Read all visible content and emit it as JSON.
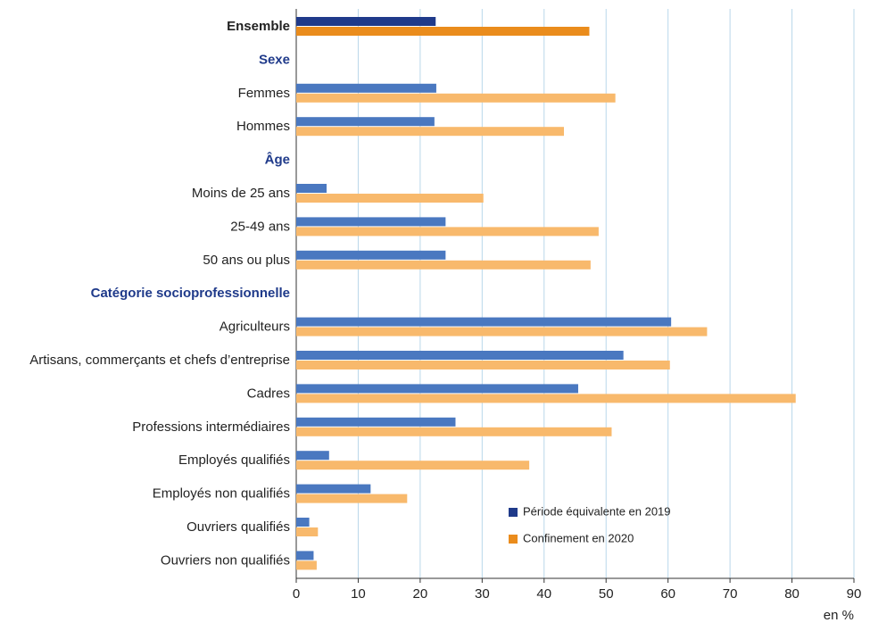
{
  "chart_data": {
    "type": "hbar",
    "categories": [
      "Ensemble",
      "Sexe",
      "Femmes",
      "Hommes",
      "Âge",
      "Moins de 25 ans",
      "25-49 ans",
      "50 ans ou plus",
      "Catégorie socioprofessionnelle",
      "Agriculteurs",
      "Artisans, commerçants et chefs d’entreprise",
      "Cadres",
      "Professions intermédiaires",
      "Employés qualifiés",
      "Employés non qualifiés",
      "Ouvriers qualifiés",
      "Ouvriers non qualifiés"
    ],
    "category_styles": [
      "total",
      "header",
      "item",
      "item",
      "header",
      "item",
      "item",
      "item",
      "header",
      "item",
      "item",
      "item",
      "item",
      "item",
      "item",
      "item",
      "item"
    ],
    "series": [
      {
        "name": "Période équivalente en 2019",
        "color": "#4a78c0",
        "total_color": "#1f3a8a",
        "values": [
          22.5,
          null,
          22.6,
          22.3,
          null,
          4.9,
          24.1,
          24.1,
          null,
          60.5,
          52.8,
          45.5,
          25.7,
          5.3,
          12.0,
          2.1,
          2.8
        ]
      },
      {
        "name": "Confinement en 2020",
        "color": "#f8b96c",
        "total_color": "#ea8c1c",
        "values": [
          47.3,
          null,
          51.5,
          43.2,
          null,
          30.2,
          48.8,
          47.5,
          null,
          66.3,
          60.3,
          80.6,
          50.9,
          37.6,
          17.9,
          3.5,
          3.3
        ]
      }
    ],
    "xlim": [
      0,
      90
    ],
    "xticks": [
      0,
      10,
      20,
      30,
      40,
      50,
      60,
      70,
      80,
      90
    ],
    "x_axis_label": "en %",
    "grid": true,
    "grid_color": "#b9d7ea",
    "legend_position": "lower-right"
  }
}
